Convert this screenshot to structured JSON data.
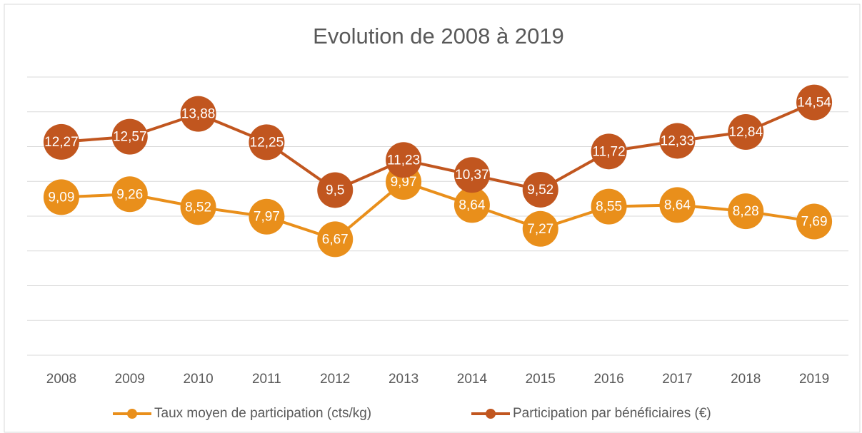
{
  "chart_data": {
    "type": "line",
    "title": "Evolution de 2008 à 2019",
    "categories": [
      "2008",
      "2009",
      "2010",
      "2011",
      "2012",
      "2013",
      "2014",
      "2015",
      "2016",
      "2017",
      "2018",
      "2019"
    ],
    "series": [
      {
        "name": "Taux moyen de participation (cts/kg)",
        "color": "#e98f1b",
        "values": [
          9.09,
          9.26,
          8.52,
          7.97,
          6.67,
          9.97,
          8.64,
          7.27,
          8.55,
          8.64,
          8.28,
          7.69
        ],
        "value_labels": [
          "9,09",
          "9,26",
          "8,52",
          "7,97",
          "6,67",
          "9,97",
          "8,64",
          "7,27",
          "8,55",
          "8,64",
          "8,28",
          "7,69"
        ]
      },
      {
        "name": "Participation par bénéficiaires (€)",
        "color": "#c1561f",
        "values": [
          12.27,
          12.57,
          13.88,
          12.25,
          9.5,
          11.23,
          10.37,
          9.52,
          11.72,
          12.33,
          12.84,
          14.54
        ],
        "value_labels": [
          "12,27",
          "12,57",
          "13,88",
          "12,25",
          "9,5",
          "11,23",
          "10,37",
          "9,52",
          "11,72",
          "12,33",
          "12,84",
          "14,54"
        ]
      }
    ],
    "ylim": [
      0,
      16
    ],
    "yticks": [
      0,
      2,
      4,
      6,
      8,
      10,
      12,
      14,
      16
    ],
    "grid": true,
    "legend": "bottom"
  }
}
